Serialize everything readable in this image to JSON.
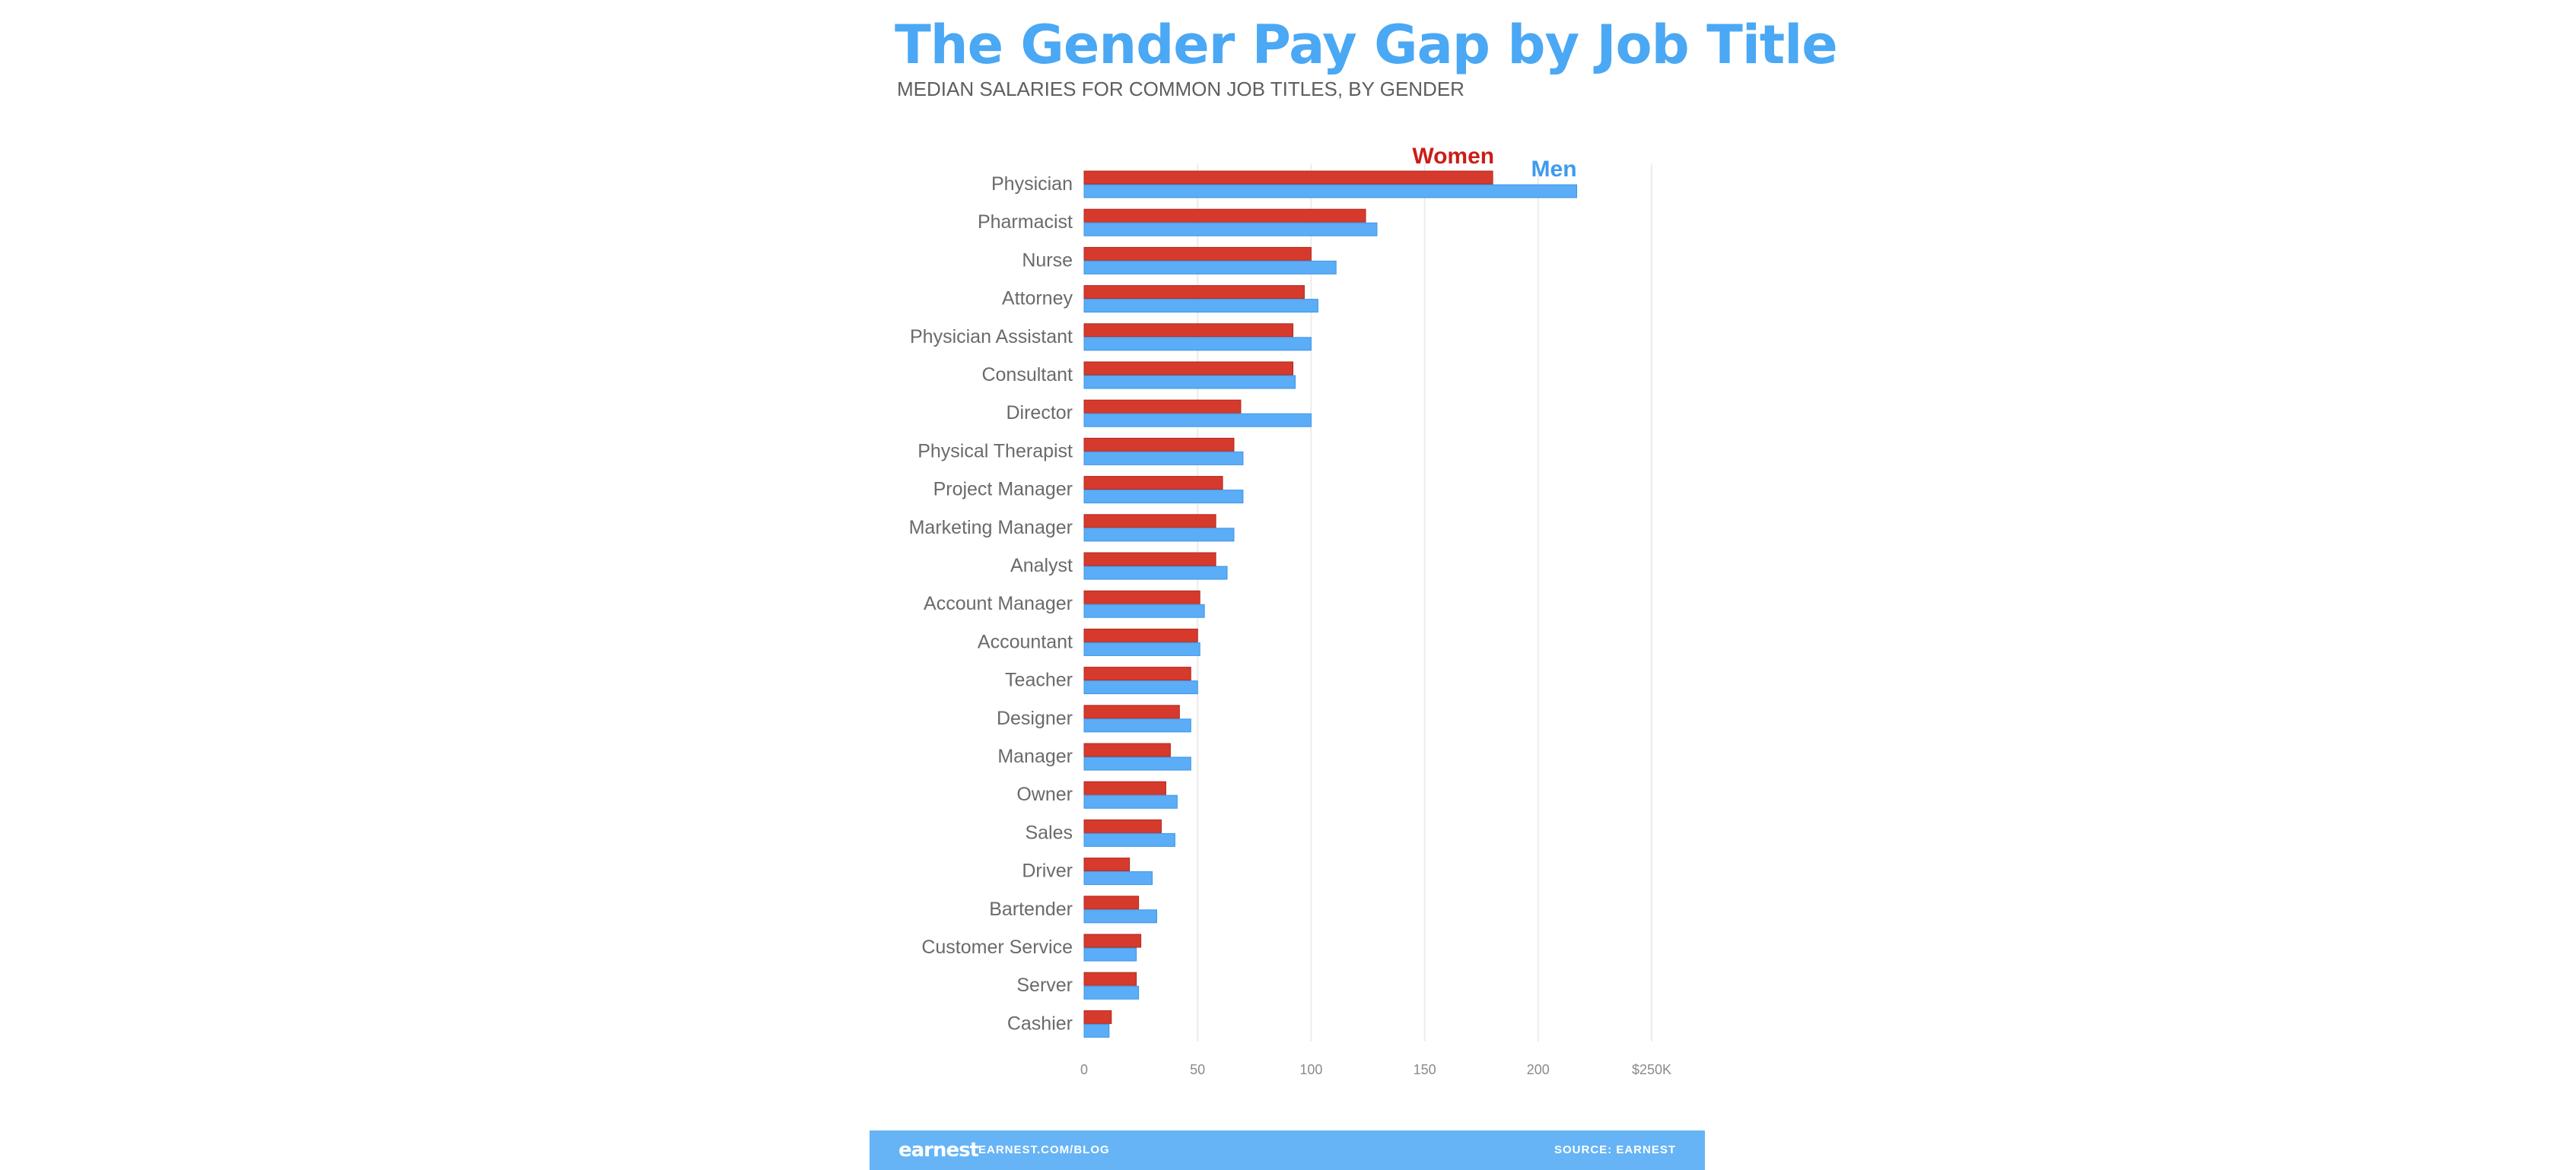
{
  "chart_data": {
    "type": "bar",
    "orientation": "horizontal",
    "title": "The Gender Pay Gap by Job Title",
    "subtitle": "MEDIAN SALARIES FOR COMMON JOB TITLES, BY GENDER",
    "categories": [
      "Physician",
      "Pharmacist",
      "Nurse",
      "Attorney",
      "Physician Assistant",
      "Consultant",
      "Director",
      "Physical Therapist",
      "Project Manager",
      "Marketing Manager",
      "Analyst",
      "Account Manager",
      "Accountant",
      "Teacher",
      "Designer",
      "Manager",
      "Owner",
      "Sales",
      "Driver",
      "Bartender",
      "Customer Service",
      "Server",
      "Cashier"
    ],
    "series": [
      {
        "name": "Women",
        "color": "#d63a2c",
        "values": [
          180,
          124,
          100,
          97,
          92,
          92,
          69,
          66,
          61,
          58,
          58,
          51,
          50,
          47,
          42,
          38,
          36,
          34,
          20,
          24,
          25,
          23,
          12
        ]
      },
      {
        "name": "Men",
        "color": "#5aadf6",
        "values": [
          217,
          129,
          111,
          103,
          100,
          93,
          100,
          70,
          70,
          66,
          63,
          53,
          51,
          50,
          47,
          47,
          41,
          40,
          30,
          32,
          23,
          24,
          11
        ]
      }
    ],
    "xlim": [
      0,
      250
    ],
    "x_ticks": [
      "0",
      "50",
      "100",
      "150",
      "200",
      "$250K"
    ],
    "x_tick_values": [
      0,
      50,
      100,
      150,
      200,
      250
    ],
    "grid": true,
    "legend": "direct labels at top-right of first bars"
  },
  "footer": {
    "logo": "earnest",
    "url": "EARNEST.COM/BLOG",
    "source": "SOURCE: EARNEST"
  }
}
